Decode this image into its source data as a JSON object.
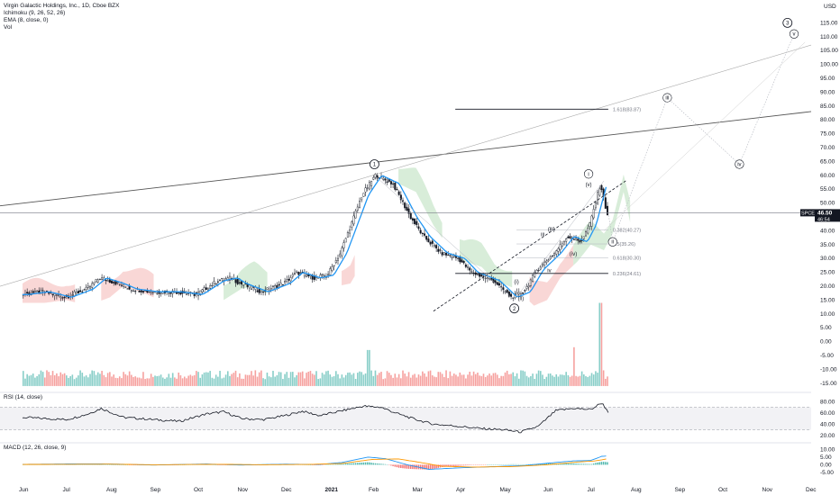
{
  "header": {
    "symbol_line": "Virgin Galactic Holdings, Inc., 1D, Cboe BZX",
    "ichimoku_label": "Ichimoku (9, 26, 52, 26)",
    "ema_label": "EMA (8, close, 0)",
    "vol_label": "Vol",
    "currency": "USD"
  },
  "panes": {
    "rsi_label": "RSI (14, close)",
    "macd_label": "MACD (12, 26, close, 9)"
  },
  "price_tag": {
    "symbol": "SPCE",
    "price": "46.50",
    "sub": "46:54"
  },
  "colors": {
    "up": "#26a69a",
    "down": "#ef5350",
    "ema": "#2196f3",
    "cloud_red": "#f7c6c5",
    "cloud_green": "#c8e6c9",
    "rsi": "#131722",
    "macd": "#2196f3",
    "signal": "#ff9800"
  },
  "chart_data": {
    "type": "candlestick",
    "x_axis": {
      "ticks": [
        "Jun",
        "Jul",
        "Aug",
        "Sep",
        "Oct",
        "Nov",
        "Dec",
        "2021",
        "Feb",
        "Mar",
        "Apr",
        "May",
        "Jun",
        "Jul",
        "Aug",
        "Sep",
        "Oct",
        "Nov",
        "Dec"
      ],
      "month_index": [
        0,
        1,
        2,
        3,
        4,
        5,
        6,
        7,
        8,
        9,
        10,
        11,
        12,
        13,
        14,
        15,
        16,
        17,
        18
      ]
    },
    "price_axis": {
      "ticks": [
        "115.00",
        "110.00",
        "105.00",
        "100.00",
        "95.00",
        "90.00",
        "85.00",
        "80.00",
        "75.00",
        "70.00",
        "65.00",
        "60.00",
        "55.00",
        "50.00",
        "45.00",
        "40.00",
        "35.00",
        "30.00",
        "25.00",
        "20.00",
        "15.00",
        "10.00",
        "5.00",
        "0.00",
        "-5.00",
        "-10.00",
        "-15.00"
      ],
      "values": [
        115,
        110,
        105,
        100,
        95,
        90,
        85,
        80,
        75,
        70,
        65,
        60,
        55,
        50,
        45,
        40,
        35,
        30,
        25,
        20,
        15,
        10,
        5,
        0,
        -5,
        -10,
        -15
      ],
      "range": [
        -17,
        120
      ]
    },
    "rsi_axis": {
      "ticks": [
        "80.00",
        "60.00",
        "40.00",
        "20.00"
      ],
      "values": [
        80,
        60,
        40,
        20
      ],
      "range": [
        10,
        90
      ],
      "band": [
        30,
        70
      ]
    },
    "macd_axis": {
      "ticks": [
        "10.00",
        "5.00",
        "0.00",
        "-5.00"
      ],
      "values": [
        10,
        5,
        0,
        -5
      ],
      "range": [
        -8,
        12
      ]
    },
    "price_path": [
      [
        0,
        17
      ],
      [
        0.5,
        18
      ],
      [
        1,
        16
      ],
      [
        1.5,
        19
      ],
      [
        1.8,
        23
      ],
      [
        2.2,
        21
      ],
      [
        2.5,
        19
      ],
      [
        3,
        18
      ],
      [
        3.5,
        18
      ],
      [
        4,
        17
      ],
      [
        4.5,
        22
      ],
      [
        4.8,
        23
      ],
      [
        5,
        21
      ],
      [
        5.5,
        18
      ],
      [
        6,
        21
      ],
      [
        6.3,
        25
      ],
      [
        6.7,
        23
      ],
      [
        7,
        24
      ],
      [
        7.3,
        32
      ],
      [
        7.8,
        53
      ],
      [
        8.1,
        60
      ],
      [
        8.5,
        57
      ],
      [
        8.9,
        45
      ],
      [
        9.2,
        38
      ],
      [
        9.6,
        32
      ],
      [
        10,
        30
      ],
      [
        10.3,
        25
      ],
      [
        10.8,
        22
      ],
      [
        11.2,
        16
      ],
      [
        11.5,
        18
      ],
      [
        11.8,
        26
      ],
      [
        12.2,
        32
      ],
      [
        12.5,
        38
      ],
      [
        12.8,
        36
      ],
      [
        13,
        42
      ],
      [
        13.25,
        57
      ],
      [
        13.4,
        46
      ]
    ],
    "volume": {
      "base": -16,
      "spikes": [
        {
          "x": 7.9,
          "v": -3
        },
        {
          "x": 12.6,
          "v": -2
        },
        {
          "x": 13.2,
          "v": 14
        }
      ]
    },
    "rsi_path": [
      [
        0,
        52
      ],
      [
        0.5,
        50
      ],
      [
        1,
        48
      ],
      [
        1.5,
        58
      ],
      [
        1.8,
        68
      ],
      [
        2.3,
        52
      ],
      [
        3,
        48
      ],
      [
        3.6,
        45
      ],
      [
        4.2,
        58
      ],
      [
        4.6,
        62
      ],
      [
        5,
        50
      ],
      [
        5.5,
        48
      ],
      [
        6,
        55
      ],
      [
        6.4,
        63
      ],
      [
        6.8,
        55
      ],
      [
        7.2,
        62
      ],
      [
        7.8,
        72
      ],
      [
        8.2,
        70
      ],
      [
        8.6,
        58
      ],
      [
        9,
        48
      ],
      [
        9.4,
        40
      ],
      [
        10,
        36
      ],
      [
        10.5,
        32
      ],
      [
        11,
        30
      ],
      [
        11.4,
        26
      ],
      [
        11.8,
        36
      ],
      [
        12.2,
        64
      ],
      [
        12.6,
        68
      ],
      [
        13,
        66
      ],
      [
        13.25,
        78
      ],
      [
        13.4,
        62
      ]
    ],
    "macd_path": [
      [
        0,
        0.3
      ],
      [
        1.5,
        0.6
      ],
      [
        2.2,
        0.4
      ],
      [
        3,
        -0.2
      ],
      [
        4.2,
        0.5
      ],
      [
        5,
        -0.2
      ],
      [
        6,
        0.4
      ],
      [
        6.8,
        0.2
      ],
      [
        7.3,
        1.5
      ],
      [
        7.9,
        5
      ],
      [
        8.3,
        4
      ],
      [
        8.8,
        0
      ],
      [
        9.3,
        -3
      ],
      [
        10,
        -2
      ],
      [
        11,
        -1
      ],
      [
        11.5,
        -0.5
      ],
      [
        12,
        1
      ],
      [
        12.6,
        2.5
      ],
      [
        13,
        2.8
      ],
      [
        13.25,
        5.5
      ],
      [
        13.4,
        5.8
      ]
    ],
    "signal_path": [
      [
        0,
        0.2
      ],
      [
        2,
        0.4
      ],
      [
        3,
        0
      ],
      [
        4.5,
        0.3
      ],
      [
        5.5,
        0
      ],
      [
        6.5,
        0.2
      ],
      [
        7.3,
        0.8
      ],
      [
        8,
        3.5
      ],
      [
        8.6,
        3.8
      ],
      [
        9,
        2
      ],
      [
        9.6,
        -1
      ],
      [
        10.3,
        -1.5
      ],
      [
        11.2,
        -1.2
      ],
      [
        12,
        0
      ],
      [
        12.7,
        1.8
      ],
      [
        13.1,
        2.5
      ],
      [
        13.4,
        4
      ]
    ],
    "annotations": {
      "fib_levels": [
        {
          "label": "1.618(83.87)",
          "value": 83.87,
          "x_start": 9.9,
          "x_end": 13.4
        },
        {
          "label": "0.382(40.27)",
          "value": 40.27,
          "x_start": 11.3,
          "x_end": 13.4
        },
        {
          "label": "0.5(35.26)",
          "value": 35.26,
          "x_start": 11.3,
          "x_end": 13.4
        },
        {
          "label": "0.618(30.30)",
          "value": 30.3,
          "x_start": 11.3,
          "x_end": 13.4
        },
        {
          "label": "0.236(24.61)",
          "value": 24.61,
          "x_start": 9.9,
          "x_end": 13.4
        }
      ],
      "major_waves": [
        {
          "label": "1",
          "x": 8.05,
          "y": 64
        },
        {
          "label": "2",
          "x": 11.25,
          "y": 12
        },
        {
          "label": "3",
          "x": 17.5,
          "y": 115
        }
      ],
      "minor_waves": [
        {
          "label": "i",
          "x": 12.95,
          "y": 60.5
        },
        {
          "label": "ii",
          "x": 13.5,
          "y": 36
        },
        {
          "label": "iii",
          "x": 14.75,
          "y": 88
        },
        {
          "label": "iv",
          "x": 16.4,
          "y": 64
        },
        {
          "label": "v",
          "x": 17.65,
          "y": 111
        }
      ],
      "sub_waves": [
        {
          "label": "(i)",
          "x": 11.3,
          "y": 21
        },
        {
          "label": "(ii)",
          "x": 11.4,
          "y": 15
        },
        {
          "label": "(iii)",
          "x": 12.1,
          "y": 40
        },
        {
          "label": "(iv)",
          "x": 12.6,
          "y": 31
        },
        {
          "label": "(v)",
          "x": 12.95,
          "y": 56
        },
        {
          "label": "iii",
          "x": 11.9,
          "y": 38
        },
        {
          "label": "iv",
          "x": 12.05,
          "y": 25
        }
      ]
    }
  }
}
